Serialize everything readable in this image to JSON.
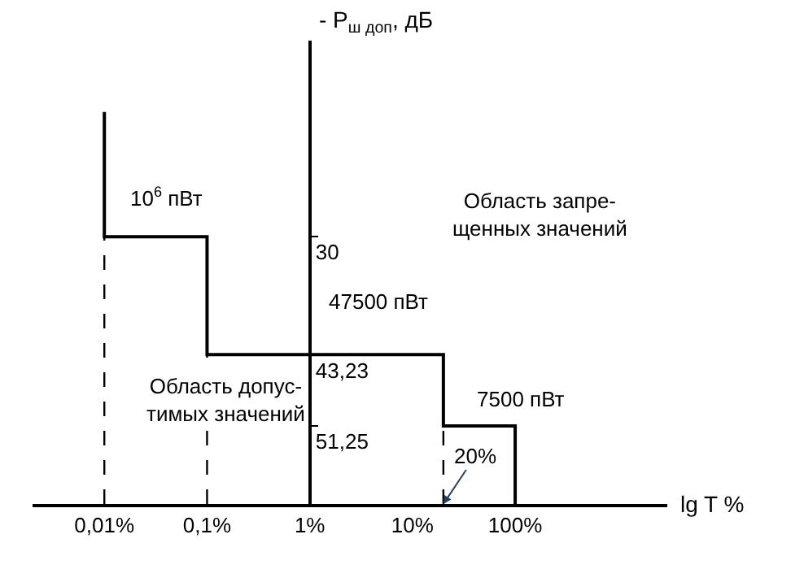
{
  "chart_data": {
    "type": "line",
    "xlabel": "lg T %",
    "ylabel": "- P$_{ш доп}$, дБ",
    "log": "x",
    "xlim": [
      0.002,
      3000
    ],
    "xticks": [
      {
        "value": 0.01,
        "label": "0,01%"
      },
      {
        "value": 0.1,
        "label": "0,1%"
      },
      {
        "value": 1,
        "label": "1%"
      },
      {
        "value": 10,
        "label": "10%"
      },
      {
        "value": 100,
        "label": "100%"
      }
    ],
    "ylim": [
      60,
      8
    ],
    "yticks": [
      30,
      {
        "value": 43.23,
        "label": "43,23"
      },
      {
        "value": 51.25,
        "label": "51,25"
      }
    ],
    "marker": "none",
    "line_style": "solid",
    "series": [
      {
        "color": "#000000",
        "x": [
          0.01,
          0.01,
          0.1,
          0.1,
          20,
          20,
          100,
          100
        ],
        "values": [
          16,
          30,
          30,
          43.23,
          43.23,
          51.25,
          51.25,
          60
        ]
      }
    ],
    "ref_lines": [
      {
        "axis": "x",
        "value": 0.01,
        "label": null,
        "color": "#000000",
        "line_style": "dashed"
      },
      {
        "axis": "x",
        "value": 0.1,
        "label": null,
        "color": "#000000",
        "line_style": "dashed"
      },
      {
        "axis": "x",
        "value": 20,
        "label": null,
        "color": "#000000",
        "line_style": "dashed"
      }
    ],
    "annotations": [
      "10$^{6}$ пВт",
      "Область запре-\nщенных значений",
      "47500 пВт",
      "Область допус-\nтимых значений",
      "7500 пВт",
      {
        "text": "20%",
        "x": 20,
        "y": 60
      }
    ]
  }
}
